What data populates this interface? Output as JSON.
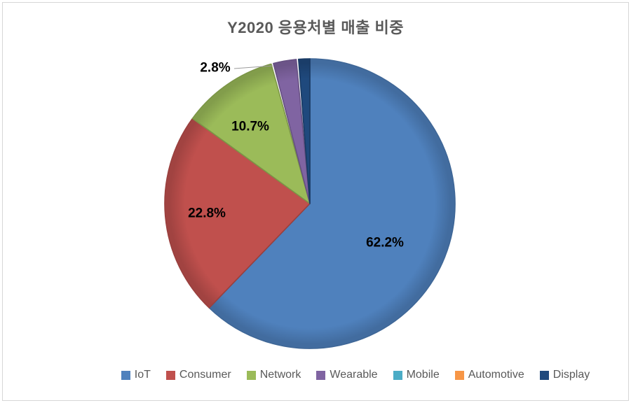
{
  "chart_data": {
    "type": "pie",
    "title": "Y2020 응용처별 매출 비중",
    "legend_position": "bottom",
    "start_angle_deg": 0,
    "direction": "clockwise",
    "series": [
      {
        "name": "IoT",
        "value": 62.2,
        "label": "62.2%",
        "color": "#4F81BD"
      },
      {
        "name": "Consumer",
        "value": 22.8,
        "label": "22.8%",
        "color": "#C0504D"
      },
      {
        "name": "Network",
        "value": 10.7,
        "label": "10.7%",
        "color": "#9BBB59"
      },
      {
        "name": "Wearable",
        "value": 2.8,
        "label": "2.8%",
        "color": "#8064A2"
      },
      {
        "name": "Mobile",
        "value": 0.0,
        "label": "",
        "color": "#4BACC6"
      },
      {
        "name": "Automotive",
        "value": 0.0,
        "label": "",
        "color": "#F79646"
      },
      {
        "name": "Display",
        "value": 1.5,
        "label": "",
        "color": "#1F497D"
      }
    ],
    "title_color": "#595959",
    "label_color": "#000000",
    "legend_text_color": "#595959"
  }
}
